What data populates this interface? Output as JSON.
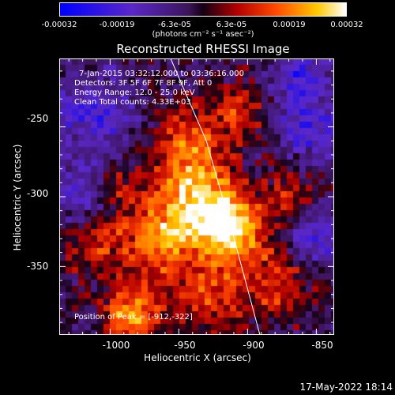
{
  "colorbar": {
    "ticks": [
      "-0.00032",
      "-0.00019",
      "-6.3e-05",
      "6.3e-05",
      "0.00019",
      "0.00032"
    ],
    "units": "(photons cm⁻² s⁻¹ asec⁻²)",
    "range": [
      -0.00032,
      0.00032
    ]
  },
  "chart_data": {
    "type": "heatmap",
    "title": "Reconstructed RHESSI Image",
    "xlabel": "Heliocentric X (arcsec)",
    "ylabel": "Heliocentric Y (arcsec)",
    "xlim": [
      -1037,
      -837
    ],
    "ylim": [
      -399,
      -201
    ],
    "x_ticks": [
      "-1000",
      "-950",
      "-900",
      "-850"
    ],
    "x_tick_values": [
      -1000,
      -950,
      -900,
      -850
    ],
    "y_ticks": [
      "-250",
      "-300",
      "-350"
    ],
    "y_tick_values": [
      -250,
      -300,
      -350
    ],
    "annotations": [
      "7-Jan-2015 03:32:12.000 to 03:36:16.000",
      "Detectors: 3F 5F 6F 7F 8F 9F, Att 0",
      "Energy Range: 12.0 - 25.0 keV",
      "Clean     Total counts: 4.33E+03"
    ],
    "peak_label": "Position of Peak = [-912,-322]",
    "peak_position": [
      -912,
      -322
    ],
    "limb_curve": [
      [
        -956,
        -201
      ],
      [
        -930,
        -260
      ],
      [
        -912,
        -322
      ],
      [
        -891,
        -399
      ]
    ]
  },
  "timestamp": "17-May-2022 18:14"
}
